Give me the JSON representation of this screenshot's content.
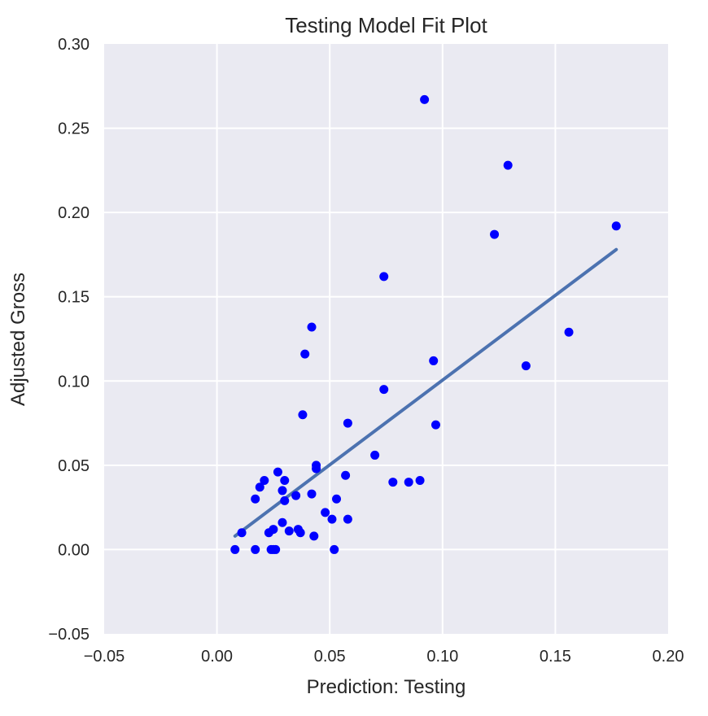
{
  "chart_data": {
    "type": "scatter",
    "title": "Testing Model Fit Plot",
    "xlabel": "Prediction: Testing",
    "ylabel": "Adjusted Gross",
    "xlim": [
      -0.05,
      0.2
    ],
    "ylim": [
      -0.05,
      0.3
    ],
    "xticks": [
      -0.05,
      0.0,
      0.05,
      0.1,
      0.15,
      0.2
    ],
    "xtick_labels": [
      "−0.05",
      "0.00",
      "0.05",
      "0.10",
      "0.15",
      "0.20"
    ],
    "yticks": [
      -0.05,
      0.0,
      0.05,
      0.1,
      0.15,
      0.2,
      0.25,
      0.3
    ],
    "ytick_labels": [
      "−0.05",
      "0.00",
      "0.05",
      "0.10",
      "0.15",
      "0.20",
      "0.25",
      "0.30"
    ],
    "grid": true,
    "background_color": "#eaeaf2",
    "point_color": "#0000ff",
    "line_color": "#4c72b0",
    "series": [
      {
        "type": "scatter",
        "points": [
          [
            0.008,
            0.0
          ],
          [
            0.011,
            0.01
          ],
          [
            0.017,
            0.0
          ],
          [
            0.017,
            0.03
          ],
          [
            0.019,
            0.037
          ],
          [
            0.021,
            0.041
          ],
          [
            0.023,
            0.01
          ],
          [
            0.024,
            0.0
          ],
          [
            0.025,
            0.012
          ],
          [
            0.025,
            0.0
          ],
          [
            0.026,
            0.0
          ],
          [
            0.027,
            0.046
          ],
          [
            0.029,
            0.035
          ],
          [
            0.029,
            0.016
          ],
          [
            0.03,
            0.041
          ],
          [
            0.03,
            0.029
          ],
          [
            0.032,
            0.011
          ],
          [
            0.035,
            0.032
          ],
          [
            0.036,
            0.012
          ],
          [
            0.037,
            0.01
          ],
          [
            0.038,
            0.08
          ],
          [
            0.039,
            0.116
          ],
          [
            0.042,
            0.132
          ],
          [
            0.042,
            0.033
          ],
          [
            0.043,
            0.008
          ],
          [
            0.044,
            0.048
          ],
          [
            0.044,
            0.05
          ],
          [
            0.048,
            0.022
          ],
          [
            0.051,
            0.018
          ],
          [
            0.052,
            0.0
          ],
          [
            0.053,
            0.03
          ],
          [
            0.057,
            0.044
          ],
          [
            0.058,
            0.075
          ],
          [
            0.058,
            0.018
          ],
          [
            0.07,
            0.056
          ],
          [
            0.074,
            0.162
          ],
          [
            0.074,
            0.095
          ],
          [
            0.078,
            0.04
          ],
          [
            0.085,
            0.04
          ],
          [
            0.09,
            0.041
          ],
          [
            0.092,
            0.267
          ],
          [
            0.096,
            0.112
          ],
          [
            0.097,
            0.074
          ],
          [
            0.123,
            0.187
          ],
          [
            0.129,
            0.228
          ],
          [
            0.137,
            0.109
          ],
          [
            0.156,
            0.129
          ],
          [
            0.177,
            0.192
          ]
        ]
      },
      {
        "type": "line",
        "x": [
          0.008,
          0.177
        ],
        "y": [
          0.008,
          0.178
        ]
      }
    ]
  }
}
